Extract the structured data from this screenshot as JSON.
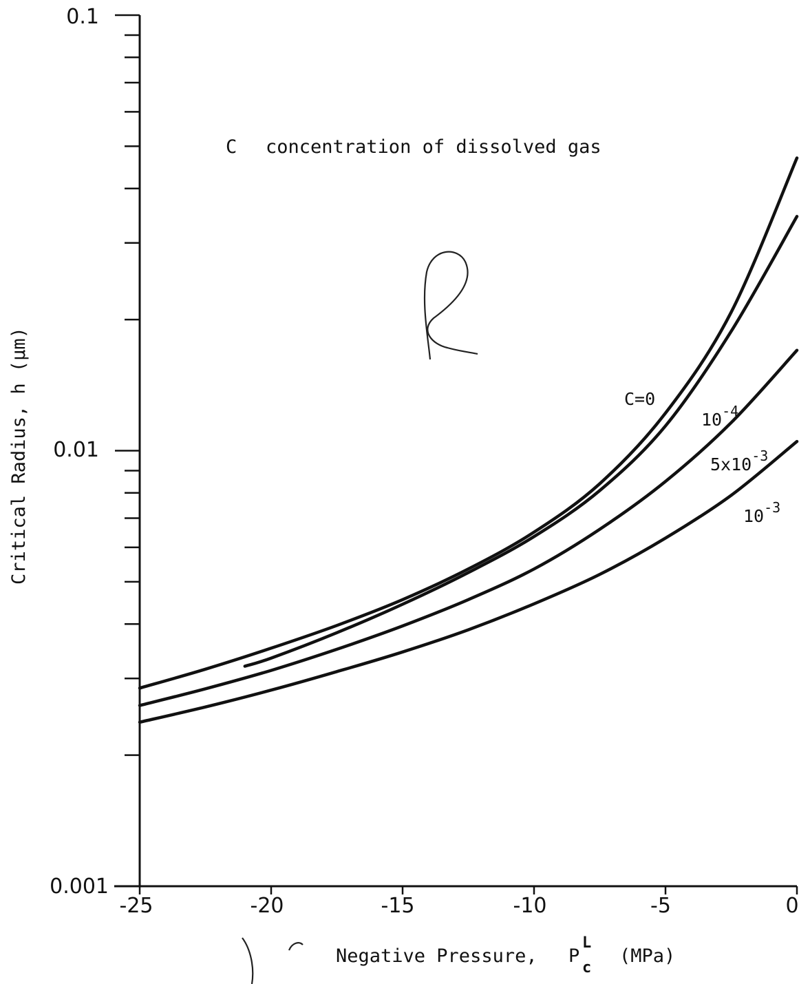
{
  "chart_data": {
    "type": "line",
    "title": "",
    "annotation": {
      "symbol": "C",
      "text": "concentration of dissolved gas"
    },
    "xlabel": {
      "main": "Negative Pressure",
      "symbol": "P",
      "sup": "L",
      "sub": "c",
      "unit": "(MPa)"
    },
    "ylabel": "Critical Radius, h (μm)",
    "xlim": [
      -25,
      0
    ],
    "ylim": [
      0.001,
      0.1
    ],
    "yscale": "log",
    "grid": false,
    "x_ticks": [
      {
        "value": -25,
        "label": "-25"
      },
      {
        "value": -20,
        "label": "-20"
      },
      {
        "value": -15,
        "label": "-15"
      },
      {
        "value": -10,
        "label": "-10"
      },
      {
        "value": -5,
        "label": "-5"
      },
      {
        "value": 0,
        "label": "0"
      }
    ],
    "y_ticks": [
      {
        "value": 0.1,
        "label": "0.1"
      },
      {
        "value": 0.01,
        "label": "0.01"
      },
      {
        "value": 0.001,
        "label": "0.001"
      }
    ],
    "series": [
      {
        "id": "c0",
        "label_base": "C=0",
        "label_exp": "",
        "x": [
          -25,
          -22.5,
          -20,
          -17.5,
          -15,
          -12.5,
          -10,
          -7.5,
          -5,
          -2.5,
          0
        ],
        "y": [
          0.00285,
          0.00315,
          0.00352,
          0.00397,
          0.00455,
          0.00535,
          0.0065,
          0.0084,
          0.0122,
          0.0208,
          0.047
        ]
      },
      {
        "id": "c1e-4",
        "label_base": "10",
        "label_exp": "-4",
        "x": [
          -21,
          -20,
          -17.5,
          -15,
          -12.5,
          -10,
          -7.5,
          -5,
          -2.5,
          0
        ],
        "y": [
          0.0032,
          0.00334,
          0.00382,
          0.00444,
          0.00525,
          0.00635,
          0.0081,
          0.0114,
          0.0188,
          0.0345
        ]
      },
      {
        "id": "c5e-3",
        "label_base": "5x10",
        "label_exp": "-3",
        "x": [
          -25,
          -22.5,
          -20,
          -17.5,
          -15,
          -12.5,
          -10,
          -7.5,
          -5,
          -2.5,
          0
        ],
        "y": [
          0.0026,
          0.00284,
          0.00313,
          0.0035,
          0.00396,
          0.00455,
          0.00535,
          0.0066,
          0.0085,
          0.0116,
          0.017
        ]
      },
      {
        "id": "c1e-3",
        "label_base": "10",
        "label_exp": "-3",
        "x": [
          -25,
          -22.5,
          -20,
          -17.5,
          -15,
          -12.5,
          -10,
          -7.5,
          -5,
          -2.5,
          0
        ],
        "y": [
          0.00238,
          0.00258,
          0.00282,
          0.00311,
          0.00345,
          0.00388,
          0.00445,
          0.0052,
          0.0063,
          0.0079,
          0.0105
        ]
      }
    ]
  }
}
